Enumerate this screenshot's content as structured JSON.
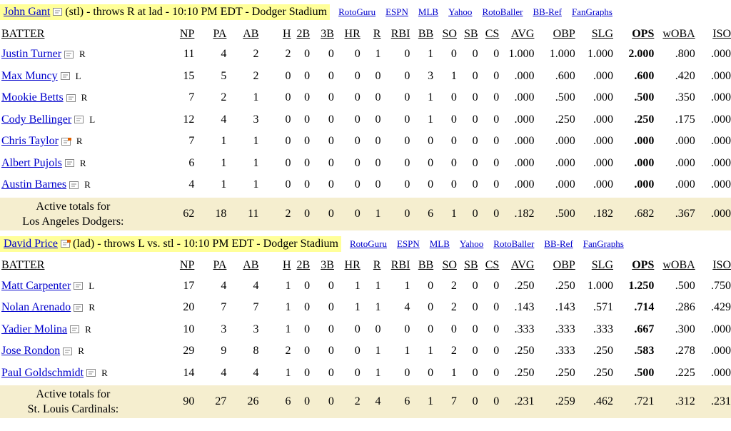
{
  "sections": [
    {
      "pitcher": {
        "name": "John Gant",
        "info": "(stl) - throws R at lad - 10:10 PM EDT - Dodger Stadium"
      },
      "links": [
        "RotoGuru",
        "ESPN",
        "MLB",
        "Yahoo",
        "RotoBaller",
        "BB-Ref",
        "FanGraphs"
      ],
      "headers": [
        "BATTER",
        "NP",
        "PA",
        "AB",
        "H",
        "2B",
        "3B",
        "HR",
        "R",
        "RBI",
        "BB",
        "SO",
        "SB",
        "CS",
        "AVG",
        "OBP",
        "SLG",
        "OPS",
        "wOBA",
        "ISO"
      ],
      "rows": [
        {
          "name": "Justin Turner",
          "hand": "R",
          "stats": [
            "11",
            "4",
            "2",
            "2",
            "0",
            "0",
            "0",
            "1",
            "0",
            "1",
            "0",
            "0",
            "0",
            "1.000",
            "1.000",
            "1.000",
            "2.000",
            ".800",
            ".000"
          ]
        },
        {
          "name": "Max Muncy",
          "hand": "L",
          "stats": [
            "15",
            "5",
            "2",
            "0",
            "0",
            "0",
            "0",
            "0",
            "0",
            "3",
            "1",
            "0",
            "0",
            ".000",
            ".600",
            ".000",
            ".600",
            ".420",
            ".000"
          ]
        },
        {
          "name": "Mookie Betts",
          "hand": "R",
          "stats": [
            "7",
            "2",
            "1",
            "0",
            "0",
            "0",
            "0",
            "0",
            "0",
            "1",
            "0",
            "0",
            "0",
            ".000",
            ".500",
            ".000",
            ".500",
            ".350",
            ".000"
          ]
        },
        {
          "name": "Cody Bellinger",
          "hand": "L",
          "stats": [
            "12",
            "4",
            "3",
            "0",
            "0",
            "0",
            "0",
            "0",
            "0",
            "1",
            "0",
            "0",
            "0",
            ".000",
            ".250",
            ".000",
            ".250",
            ".175",
            ".000"
          ]
        },
        {
          "name": "Chris Taylor",
          "hand": "R",
          "stats": [
            "7",
            "1",
            "1",
            "0",
            "0",
            "0",
            "0",
            "0",
            "0",
            "0",
            "0",
            "0",
            "0",
            ".000",
            ".000",
            ".000",
            ".000",
            ".000",
            ".000"
          ]
        },
        {
          "name": "Albert Pujols",
          "hand": "R",
          "stats": [
            "6",
            "1",
            "1",
            "0",
            "0",
            "0",
            "0",
            "0",
            "0",
            "0",
            "0",
            "0",
            "0",
            ".000",
            ".000",
            ".000",
            ".000",
            ".000",
            ".000"
          ]
        },
        {
          "name": "Austin Barnes",
          "hand": "R",
          "stats": [
            "4",
            "1",
            "1",
            "0",
            "0",
            "0",
            "0",
            "0",
            "0",
            "0",
            "0",
            "0",
            "0",
            ".000",
            ".000",
            ".000",
            ".000",
            ".000",
            ".000"
          ]
        }
      ],
      "totals": {
        "label_line1": "Active totals for",
        "label_line2": "Los Angeles Dodgers:",
        "stats": [
          "62",
          "18",
          "11",
          "2",
          "0",
          "0",
          "0",
          "1",
          "0",
          "6",
          "1",
          "0",
          "0",
          ".182",
          ".500",
          ".182",
          ".682",
          ".367",
          ".000"
        ]
      }
    },
    {
      "pitcher": {
        "name": "David Price",
        "info": "(lad) - throws L vs. stl - 10:10 PM EDT - Dodger Stadium"
      },
      "links": [
        "RotoGuru",
        "ESPN",
        "MLB",
        "Yahoo",
        "RotoBaller",
        "BB-Ref",
        "FanGraphs"
      ],
      "headers": [
        "BATTER",
        "NP",
        "PA",
        "AB",
        "H",
        "2B",
        "3B",
        "HR",
        "R",
        "RBI",
        "BB",
        "SO",
        "SB",
        "CS",
        "AVG",
        "OBP",
        "SLG",
        "OPS",
        "wOBA",
        "ISO"
      ],
      "rows": [
        {
          "name": "Matt Carpenter",
          "hand": "L",
          "stats": [
            "17",
            "4",
            "4",
            "1",
            "0",
            "0",
            "1",
            "1",
            "1",
            "0",
            "2",
            "0",
            "0",
            ".250",
            ".250",
            "1.000",
            "1.250",
            ".500",
            ".750"
          ]
        },
        {
          "name": "Nolan Arenado",
          "hand": "R",
          "stats": [
            "20",
            "7",
            "7",
            "1",
            "0",
            "0",
            "1",
            "1",
            "4",
            "0",
            "2",
            "0",
            "0",
            ".143",
            ".143",
            ".571",
            ".714",
            ".286",
            ".429"
          ]
        },
        {
          "name": "Yadier Molina",
          "hand": "R",
          "stats": [
            "10",
            "3",
            "3",
            "1",
            "0",
            "0",
            "0",
            "0",
            "0",
            "0",
            "0",
            "0",
            "0",
            ".333",
            ".333",
            ".333",
            ".667",
            ".300",
            ".000"
          ]
        },
        {
          "name": "Jose Rondon",
          "hand": "R",
          "stats": [
            "29",
            "9",
            "8",
            "2",
            "0",
            "0",
            "0",
            "1",
            "1",
            "1",
            "2",
            "0",
            "0",
            ".250",
            ".333",
            ".250",
            ".583",
            ".278",
            ".000"
          ]
        },
        {
          "name": "Paul Goldschmidt",
          "hand": "R",
          "stats": [
            "14",
            "4",
            "4",
            "1",
            "0",
            "0",
            "0",
            "1",
            "0",
            "0",
            "1",
            "0",
            "0",
            ".250",
            ".250",
            ".250",
            ".500",
            ".225",
            ".000"
          ]
        }
      ],
      "totals": {
        "label_line1": "Active totals for",
        "label_line2": "St. Louis Cardinals:",
        "stats": [
          "90",
          "27",
          "26",
          "6",
          "0",
          "0",
          "2",
          "4",
          "6",
          "1",
          "7",
          "0",
          "0",
          ".231",
          ".259",
          ".462",
          ".721",
          ".312",
          ".231"
        ]
      }
    }
  ]
}
